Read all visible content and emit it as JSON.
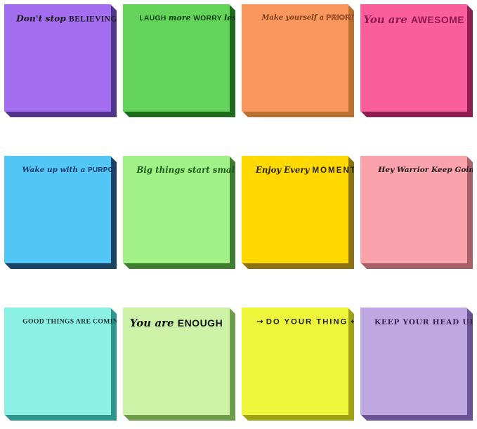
{
  "image_type": "product-photo",
  "subject": "Grid of 12 motivational quote sticky note pads (4 columns x 3 rows)",
  "background_color": "#ffffff",
  "notes": [
    {
      "id": "dont-stop-believing",
      "quote": "Don't stop BELIEVING",
      "face": "#a46ef0",
      "edge": "#53348c",
      "ink": "#1c1c1c",
      "segments": [
        {
          "text": "Don't stop ",
          "style": "script"
        },
        {
          "text": "BELIEVING",
          "style": "serif-caps"
        }
      ]
    },
    {
      "id": "laugh-more-worry-less",
      "quote": "LAUGH more WORRY less",
      "face": "#63d35a",
      "edge": "#1e6b1e",
      "ink": "#0a3f0a",
      "segments": [
        {
          "text": "LAUGH ",
          "style": "caps"
        },
        {
          "text": "more ",
          "style": "script"
        },
        {
          "text": "WORRY ",
          "style": "caps"
        },
        {
          "text": "less",
          "style": "script"
        }
      ]
    },
    {
      "id": "make-yourself-a-priority",
      "quote": "Make yourself a PRIORITY",
      "face": "#f9975f",
      "edge": "#bc7134",
      "ink": "#7a3c14",
      "segments": [
        {
          "text": "Make yourself a ",
          "style": "script"
        },
        {
          "text": "PRIORITY",
          "style": "outline"
        }
      ]
    },
    {
      "id": "you-are-awesome",
      "quote": "You are AWESOME",
      "face": "#fb5f9b",
      "edge": "#8e1e52",
      "ink": "#8e1850",
      "segments": [
        {
          "text": "You are ",
          "style": "script"
        },
        {
          "text": "AWESOME",
          "style": "caps"
        }
      ]
    },
    {
      "id": "wake-up-with-a-purpose",
      "quote": "Wake up with a PURPOSE",
      "face": "#52c6f6",
      "edge": "#1c4266",
      "ink": "#1b3668",
      "segments": [
        {
          "text": "Wake up with a ",
          "style": "script"
        },
        {
          "text": "PURPOSE",
          "style": "caps"
        }
      ]
    },
    {
      "id": "big-things-start-small",
      "quote": "Big things start small",
      "face": "#a2f186",
      "edge": "#3f7e2e",
      "ink": "#1d5c1d",
      "segments": [
        {
          "text": "Big things start small",
          "style": "script"
        }
      ]
    },
    {
      "id": "enjoy-every-moment",
      "quote": "Enjoy Every MOMENT",
      "face": "#ffd900",
      "edge": "#8c7210",
      "ink": "#2a2513",
      "segments": [
        {
          "text": "Enjoy Every ",
          "style": "script"
        },
        {
          "text": "MOMENT",
          "style": "deco"
        }
      ]
    },
    {
      "id": "hey-warrior-keep-going",
      "quote": "Hey Warrior Keep Going",
      "face": "#fba3ad",
      "edge": "#a85f68",
      "ink": "#1a1a1a",
      "segments": [
        {
          "text": "Hey Warrior  Keep Going",
          "style": "script"
        }
      ]
    },
    {
      "id": "good-things-are-coming",
      "quote": "GOOD THINGS ARE COMING",
      "face": "#8cf0e4",
      "edge": "#2f968e",
      "ink": "#133430",
      "segments": [
        {
          "text": "GOOD THINGS ARE COMING",
          "style": "serif-caps"
        }
      ]
    },
    {
      "id": "you-are-enough",
      "quote": "You are ENOUGH",
      "face": "#cbf2a6",
      "edge": "#6f9e4a",
      "ink": "#131313",
      "segments": [
        {
          "text": "You are ",
          "style": "script"
        },
        {
          "text": "ENOUGH",
          "style": "caps"
        }
      ]
    },
    {
      "id": "do-your-thing",
      "quote": "→ DO YOUR THING ←",
      "face": "#eef63c",
      "edge": "#a0a315",
      "ink": "#222222",
      "segments": [
        {
          "text": "→ ",
          "style": "arrow"
        },
        {
          "text": "DO YOUR THING",
          "style": "deco"
        },
        {
          "text": " ←",
          "style": "arrow"
        }
      ]
    },
    {
      "id": "keep-your-head-up",
      "quote": "KEEP YOUR HEAD UP",
      "face": "#bfa7e2",
      "edge": "#6a5395",
      "ink": "#3a2452",
      "segments": [
        {
          "text": "KEEP YOUR HEAD UP",
          "style": "western"
        }
      ]
    }
  ]
}
